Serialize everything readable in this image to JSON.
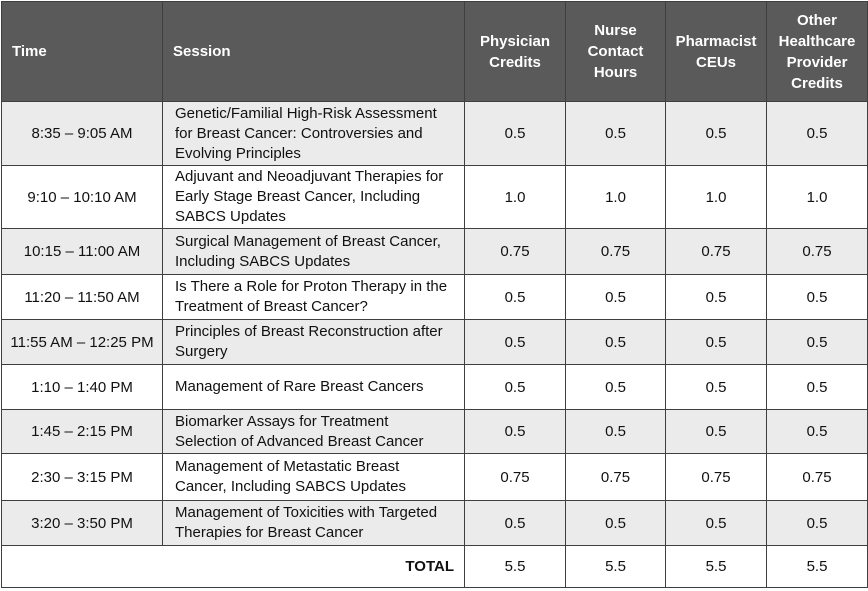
{
  "headers": {
    "time": "Time",
    "session": "Session",
    "physician": [
      "Physician",
      "Credits"
    ],
    "nurse": [
      "Nurse",
      "Contact",
      "Hours"
    ],
    "pharmacist": [
      "Pharmacist",
      "CEUs"
    ],
    "other": [
      "Other",
      "Healthcare",
      "Provider",
      "Credits"
    ]
  },
  "rows": [
    {
      "time": "8:35 – 9:05 AM",
      "session": [
        "Genetic/Familial High-Risk Assessment",
        "for Breast Cancer: Controversies and",
        "Evolving Principles"
      ],
      "physician": "0.5",
      "nurse": "0.5",
      "pharmacist": "0.5",
      "other": "0.5"
    },
    {
      "time": "9:10 – 10:10 AM",
      "session": [
        "Adjuvant and Neoadjuvant Therapies for",
        "Early Stage Breast Cancer, Including",
        "SABCS Updates"
      ],
      "physician": "1.0",
      "nurse": "1.0",
      "pharmacist": "1.0",
      "other": "1.0"
    },
    {
      "time": "10:15 – 11:00 AM",
      "session": [
        "Surgical Management of Breast Cancer,",
        "Including SABCS Updates"
      ],
      "physician": "0.75",
      "nurse": "0.75",
      "pharmacist": "0.75",
      "other": "0.75"
    },
    {
      "time": "11:20 – 11:50 AM",
      "session": [
        "Is There a Role for Proton Therapy in the",
        "Treatment of Breast Cancer?"
      ],
      "physician": "0.5",
      "nurse": "0.5",
      "pharmacist": "0.5",
      "other": "0.5"
    },
    {
      "time": "11:55 AM – 12:25 PM",
      "session": [
        "Principles of Breast Reconstruction after",
        "Surgery"
      ],
      "physician": "0.5",
      "nurse": "0.5",
      "pharmacist": "0.5",
      "other": "0.5"
    },
    {
      "time": "1:10 – 1:40 PM",
      "session": [
        "Management of Rare Breast Cancers"
      ],
      "physician": "0.5",
      "nurse": "0.5",
      "pharmacist": "0.5",
      "other": "0.5"
    },
    {
      "time": "1:45 – 2:15 PM",
      "session": [
        "Biomarker Assays for Treatment",
        "Selection of Advanced Breast Cancer"
      ],
      "physician": "0.5",
      "nurse": "0.5",
      "pharmacist": "0.5",
      "other": "0.5"
    },
    {
      "time": "2:30 – 3:15 PM",
      "session": [
        "Management of Metastatic Breast",
        "Cancer, Including SABCS Updates"
      ],
      "physician": "0.75",
      "nurse": "0.75",
      "pharmacist": "0.75",
      "other": "0.75"
    },
    {
      "time": "3:20 – 3:50 PM",
      "session": [
        "Management of Toxicities with Targeted",
        "Therapies for Breast Cancer"
      ],
      "physician": "0.5",
      "nurse": "0.5",
      "pharmacist": "0.5",
      "other": "0.5"
    }
  ],
  "total": {
    "label": "TOTAL",
    "physician": "5.5",
    "nurse": "5.5",
    "pharmacist": "5.5",
    "other": "5.5"
  }
}
